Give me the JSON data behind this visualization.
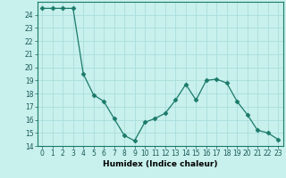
{
  "x": [
    0,
    1,
    2,
    3,
    4,
    5,
    6,
    7,
    8,
    9,
    10,
    11,
    12,
    13,
    14,
    15,
    16,
    17,
    18,
    19,
    20,
    21,
    22,
    23
  ],
  "y": [
    24.5,
    24.5,
    24.5,
    24.5,
    19.5,
    17.9,
    17.4,
    16.1,
    14.8,
    14.4,
    15.8,
    16.1,
    16.5,
    17.5,
    18.7,
    17.5,
    19.0,
    19.1,
    18.8,
    17.4,
    16.4,
    15.2,
    15.0,
    14.5
  ],
  "xlabel": "Humidex (Indice chaleur)",
  "ylim": [
    14,
    25
  ],
  "xlim": [
    -0.5,
    23.5
  ],
  "yticks": [
    14,
    15,
    16,
    17,
    18,
    19,
    20,
    21,
    22,
    23,
    24
  ],
  "xticks": [
    0,
    1,
    2,
    3,
    4,
    5,
    6,
    7,
    8,
    9,
    10,
    11,
    12,
    13,
    14,
    15,
    16,
    17,
    18,
    19,
    20,
    21,
    22,
    23
  ],
  "line_color": "#1a7a6a",
  "marker": "D",
  "marker_size": 2.5,
  "bg_color": "#c8f0ec",
  "grid_color": "#aadddd",
  "tick_fontsize": 5.5,
  "label_fontsize": 6.5
}
